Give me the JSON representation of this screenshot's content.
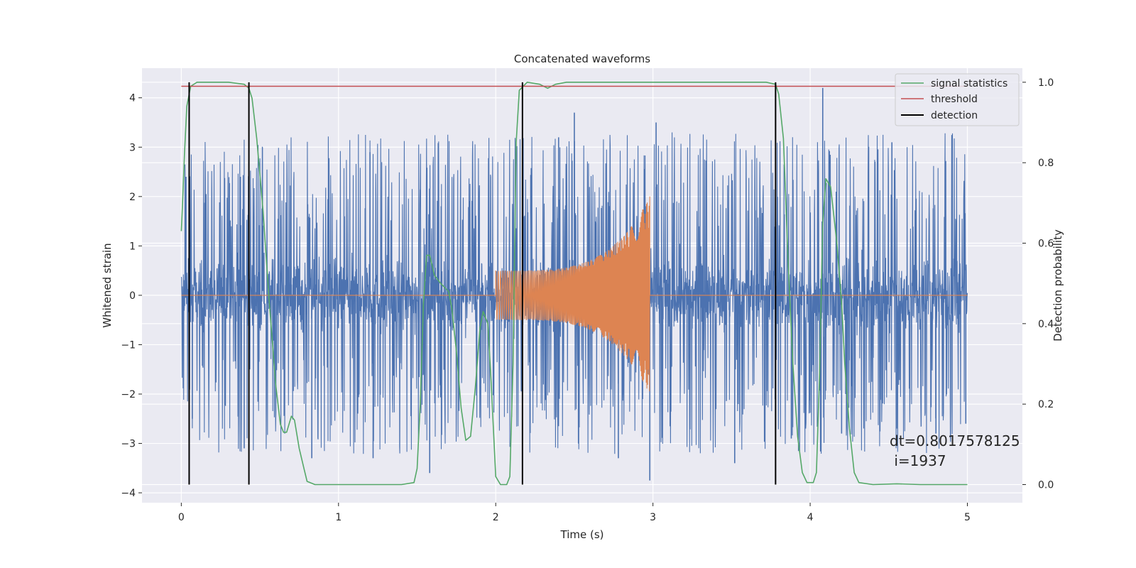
{
  "chart_data": {
    "type": "line",
    "title": "Concatenated waveforms",
    "xlabel": "Time (s)",
    "ylabel": "Whitened strain",
    "y2label": "Detection probability",
    "xlim": [
      -0.25,
      5.35
    ],
    "ylim": [
      -4.2,
      4.6
    ],
    "y2lim": [
      -0.045,
      1.035
    ],
    "xticks": [
      0,
      1,
      2,
      3,
      4,
      5
    ],
    "xtick_labels": [
      "0",
      "1",
      "2",
      "3",
      "4",
      "5"
    ],
    "yticks": [
      -4,
      -3,
      -2,
      -1,
      0,
      1,
      2,
      3,
      4
    ],
    "ytick_labels": [
      "−4",
      "−3",
      "−2",
      "−1",
      "0",
      "1",
      "2",
      "3",
      "4"
    ],
    "y2ticks": [
      0.0,
      0.2,
      0.4,
      0.6,
      0.8,
      1.0
    ],
    "y2tick_labels": [
      "0.0",
      "0.2",
      "0.4",
      "0.6",
      "0.8",
      "1.0"
    ],
    "grid": true,
    "legend_position": "top-right",
    "annotation_lines": [
      "dt=0.8017578125",
      " i=1937"
    ],
    "series": [
      {
        "name": "",
        "kind": "noise",
        "axis": "left",
        "color": "#4c72b0",
        "x_range": [
          0,
          5
        ],
        "typical_range": [
          -1.4,
          1.5
        ],
        "peak_points": [
          {
            "x": 0.03,
            "y": 2.4
          },
          {
            "x": 0.07,
            "y": -2.5
          },
          {
            "x": 0.4,
            "y": -3.1
          },
          {
            "x": 0.43,
            "y": 2.7
          },
          {
            "x": 0.83,
            "y": -3.3
          },
          {
            "x": 1.2,
            "y": 2.9
          },
          {
            "x": 1.22,
            "y": -3.3
          },
          {
            "x": 1.58,
            "y": -3.6
          },
          {
            "x": 2.4,
            "y": 3.2
          },
          {
            "x": 2.5,
            "y": 3.7
          },
          {
            "x": 2.78,
            "y": -3.3
          },
          {
            "x": 2.98,
            "y": -3.75
          },
          {
            "x": 3.02,
            "y": 3.5
          },
          {
            "x": 3.52,
            "y": -3.4
          },
          {
            "x": 3.88,
            "y": -2.9
          },
          {
            "x": 4.08,
            "y": 4.2
          },
          {
            "x": 4.2,
            "y": -2.8
          },
          {
            "x": 4.52,
            "y": 3.1
          },
          {
            "x": 4.55,
            "y": -2.7
          },
          {
            "x": 4.8,
            "y": -2.8
          },
          {
            "x": 4.99,
            "y": -2.6
          }
        ]
      },
      {
        "name": "",
        "kind": "chirp",
        "axis": "left",
        "color": "#dd8452",
        "x_range": [
          0,
          5
        ],
        "chirp_start": 2.0,
        "chirp_end": 2.98,
        "amplitude_start": 0.5,
        "amplitude_end": 2.0
      },
      {
        "name": "signal statistics",
        "kind": "line",
        "axis": "right",
        "color": "#55a868",
        "points": [
          [
            0.0,
            0.63
          ],
          [
            0.01,
            0.72
          ],
          [
            0.02,
            0.82
          ],
          [
            0.035,
            0.94
          ],
          [
            0.06,
            0.99
          ],
          [
            0.1,
            1.0
          ],
          [
            0.2,
            1.0
          ],
          [
            0.3,
            1.0
          ],
          [
            0.4,
            0.995
          ],
          [
            0.43,
            0.985
          ],
          [
            0.45,
            0.96
          ],
          [
            0.48,
            0.86
          ],
          [
            0.52,
            0.68
          ],
          [
            0.56,
            0.45
          ],
          [
            0.6,
            0.25
          ],
          [
            0.63,
            0.15
          ],
          [
            0.65,
            0.13
          ],
          [
            0.67,
            0.13
          ],
          [
            0.7,
            0.17
          ],
          [
            0.72,
            0.16
          ],
          [
            0.75,
            0.09
          ],
          [
            0.78,
            0.04
          ],
          [
            0.8,
            0.008
          ],
          [
            0.85,
            0.0
          ],
          [
            1.0,
            0.0
          ],
          [
            1.4,
            0.0
          ],
          [
            1.48,
            0.005
          ],
          [
            1.5,
            0.04
          ],
          [
            1.52,
            0.2
          ],
          [
            1.54,
            0.45
          ],
          [
            1.56,
            0.57
          ],
          [
            1.58,
            0.57
          ],
          [
            1.61,
            0.52
          ],
          [
            1.65,
            0.5
          ],
          [
            1.7,
            0.48
          ],
          [
            1.72,
            0.44
          ],
          [
            1.75,
            0.33
          ],
          [
            1.78,
            0.19
          ],
          [
            1.81,
            0.11
          ],
          [
            1.84,
            0.12
          ],
          [
            1.87,
            0.24
          ],
          [
            1.9,
            0.39
          ],
          [
            1.92,
            0.43
          ],
          [
            1.95,
            0.4
          ],
          [
            1.97,
            0.26
          ],
          [
            1.99,
            0.1
          ],
          [
            2.0,
            0.02
          ],
          [
            2.03,
            0.0
          ],
          [
            2.07,
            0.0
          ],
          [
            2.09,
            0.02
          ],
          [
            2.11,
            0.3
          ],
          [
            2.13,
            0.85
          ],
          [
            2.15,
            0.98
          ],
          [
            2.2,
            1.0
          ],
          [
            2.28,
            0.995
          ],
          [
            2.33,
            0.985
          ],
          [
            2.38,
            0.995
          ],
          [
            2.45,
            1.0
          ],
          [
            3.0,
            1.0
          ],
          [
            3.5,
            1.0
          ],
          [
            3.72,
            1.0
          ],
          [
            3.78,
            0.995
          ],
          [
            3.8,
            0.97
          ],
          [
            3.83,
            0.86
          ],
          [
            3.86,
            0.55
          ],
          [
            3.89,
            0.3
          ],
          [
            3.92,
            0.12
          ],
          [
            3.95,
            0.03
          ],
          [
            3.98,
            0.005
          ],
          [
            4.02,
            0.005
          ],
          [
            4.04,
            0.03
          ],
          [
            4.06,
            0.28
          ],
          [
            4.08,
            0.65
          ],
          [
            4.1,
            0.76
          ],
          [
            4.13,
            0.74
          ],
          [
            4.17,
            0.6
          ],
          [
            4.2,
            0.45
          ],
          [
            4.22,
            0.3
          ],
          [
            4.25,
            0.14
          ],
          [
            4.28,
            0.03
          ],
          [
            4.31,
            0.005
          ],
          [
            4.4,
            0.0
          ],
          [
            4.55,
            0.002
          ],
          [
            4.7,
            0.0
          ],
          [
            5.0,
            0.0
          ]
        ]
      },
      {
        "name": "threshold",
        "kind": "hline",
        "axis": "right",
        "color": "#c44e52",
        "x_range": [
          0,
          5
        ],
        "value": 0.99
      },
      {
        "name": "detection",
        "kind": "vlines",
        "axis": "right",
        "color": "#000000",
        "x_values": [
          0.05,
          0.43,
          2.17,
          3.78
        ],
        "y_range": [
          0,
          1
        ]
      }
    ]
  }
}
